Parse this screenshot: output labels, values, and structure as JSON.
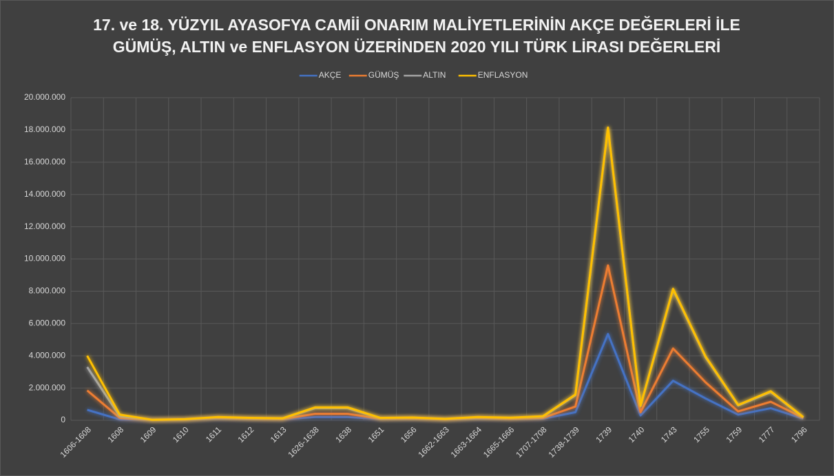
{
  "chart_data": {
    "type": "line",
    "title": [
      "17. ve 18. YÜZYIL AYASOFYA CAMİİ ONARIM MALİYETLERİNİN AKÇE DEĞERLERİ İLE",
      "GÜMÜŞ, ALTIN ve ENFLASYON ÜZERİNDEN 2020 YILI TÜRK LİRASI DEĞERLERİ"
    ],
    "categories": [
      "1606-1608",
      "1608",
      "1609",
      "1610",
      "1611",
      "1612",
      "1613",
      "1626-1638",
      "1638",
      "1651",
      "1656",
      "1662-1663",
      "1663-1664",
      "1665-1666",
      "1707-1708",
      "1738-1739",
      "1739",
      "1740",
      "1743",
      "1755",
      "1759",
      "1777",
      "1796"
    ],
    "series": [
      {
        "name": "AKÇE",
        "color": "#4472c4",
        "values": [
          650000,
          50000,
          20000,
          30000,
          100000,
          80000,
          60000,
          200000,
          200000,
          80000,
          90000,
          50000,
          100000,
          80000,
          100000,
          500000,
          5350000,
          300000,
          2450000,
          1350000,
          350000,
          750000,
          100000
        ]
      },
      {
        "name": "GÜMÜŞ",
        "color": "#ed7d31",
        "values": [
          1850000,
          150000,
          20000,
          50000,
          150000,
          100000,
          80000,
          400000,
          400000,
          100000,
          120000,
          60000,
          150000,
          100000,
          150000,
          850000,
          9600000,
          500000,
          4450000,
          2350000,
          550000,
          1150000,
          150000
        ]
      },
      {
        "name": "ALTIN",
        "color": "#a5a5a5",
        "values": [
          3300000,
          250000,
          25000,
          60000,
          180000,
          130000,
          110000,
          750000,
          750000,
          130000,
          160000,
          80000,
          180000,
          150000,
          220000,
          1550000,
          18100000,
          880000,
          8100000,
          3900000,
          920000,
          1750000,
          180000
        ]
      },
      {
        "name": "ENFLASYON",
        "color": "#ffc000",
        "values": [
          4000000,
          350000,
          30000,
          70000,
          200000,
          150000,
          120000,
          800000,
          800000,
          150000,
          170000,
          90000,
          200000,
          160000,
          250000,
          1600000,
          18150000,
          900000,
          8150000,
          3950000,
          950000,
          1800000,
          200000
        ]
      }
    ],
    "ylim": [
      0,
      20000000
    ],
    "yticks": [
      0,
      {
        "value": 2000000,
        "label": "2.000.000"
      },
      {
        "value": 4000000,
        "label": "4.000.000"
      },
      {
        "value": 6000000,
        "label": "6.000.000"
      },
      {
        "value": 8000000,
        "label": "8.000.000"
      },
      {
        "value": 10000000,
        "label": "10.000.000"
      },
      {
        "value": 12000000,
        "label": "12.000.000"
      },
      {
        "value": 14000000,
        "label": "14.000.000"
      },
      {
        "value": 16000000,
        "label": "16.000.000"
      },
      {
        "value": 18000000,
        "label": "18.000.000"
      },
      {
        "value": 20000000,
        "label": "20.000.000"
      }
    ],
    "grid": true,
    "legend": "top"
  }
}
